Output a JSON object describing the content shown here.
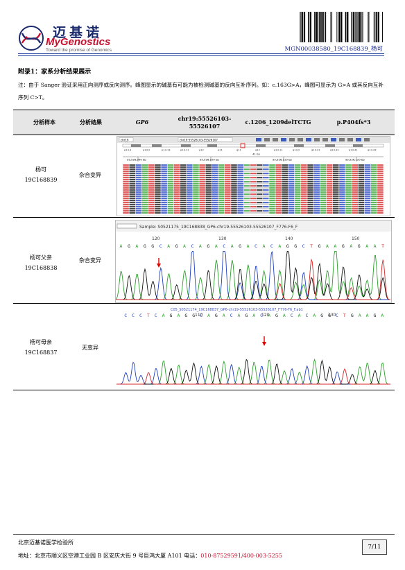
{
  "header": {
    "logo_cn": "迈基诺",
    "logo_en": "MyGenostics",
    "logo_tagline": "Toward the promise of Genomics",
    "doc_id": "MGN00038580_19C168839_杨可"
  },
  "appendix": {
    "title": "附录1：家系分析结果展示",
    "note": "注：由于 Sanger 验证采用正向测序或反向测序。峰图显示的碱基有可能为被检测碱基的反向互补序列。如：c.163G>A，峰图可显示为 G>A 或其反向互补序列 C>T。"
  },
  "table": {
    "headers": {
      "sample": "分析样本",
      "result": "分析结果",
      "gene": "GP6",
      "position": "chr19:55526103-55526107",
      "cdna": "c.1206_1209delTCTG",
      "protein": "p.P404fs*3"
    },
    "rows": [
      {
        "name": "杨可",
        "id": "19C168839",
        "result": "杂合变异"
      },
      {
        "name": "杨可父亲",
        "id": "19C168838",
        "result": "杂合变异"
      },
      {
        "name": "杨可母亲",
        "id": "19C168837",
        "result": "无变异"
      }
    ]
  },
  "panels": {
    "igv": {
      "chrom": "chr19",
      "locus": "chr19:55526103-55526107",
      "width_label": "41 bp",
      "ticks": [
        "55,526,090 bp",
        "55,526,100 bp",
        "55,526,110 bp",
        "55,526,120 bp"
      ],
      "bands": [
        "p13.3",
        "p13.2",
        "p13.13",
        "p13.11",
        "p12",
        "p11",
        "q11",
        "q12",
        "q13.11",
        "q13.2",
        "q13.31",
        "q13.33",
        "q13.41",
        "q13.43"
      ]
    },
    "father": {
      "sample_label": "Sample: S0521175_19C168838_GP6-chr19-55526103-55526107_F776-F6_F",
      "bases": "AGAGGCAGACAGACAGACACAGGCTGAAGAGAAT",
      "positions": [
        "120",
        "130",
        "140",
        "150"
      ]
    },
    "mother": {
      "sample_label": "C05_S0521174_19C168837_GP6-chr19-55526103-55526107_F776-F6_F.ab1",
      "bases": "CCCTCAGAGGCAGACAGACAGACACAGGCTGAAGA",
      "positions": [
        "110",
        "120",
        "130"
      ]
    },
    "colors": {
      "A": "#2ca02c",
      "C": "#1f3fbf",
      "G": "#111111",
      "T": "#d62728",
      "arrow": "#e00000"
    }
  },
  "footer": {
    "lab": "北京迈基诺医学检验所",
    "address": "地址：北京市顺义区空港工业园 B 区安庆大街 9 号巨鸿大厦 A101  电话：",
    "phone": "010-87529591/400-003-5255",
    "page": "7/11"
  }
}
